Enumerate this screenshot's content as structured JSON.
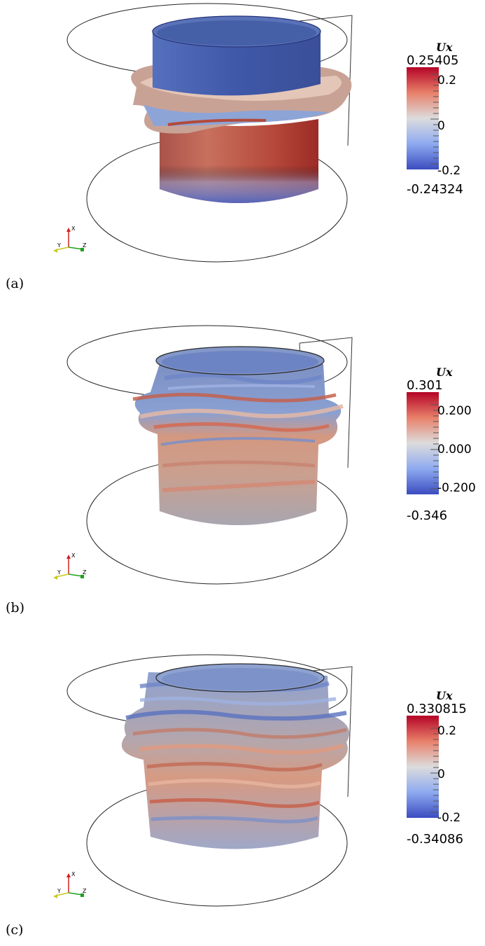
{
  "figure": {
    "panels": [
      {
        "label": "(a)",
        "colorbar": {
          "title": "Ux",
          "max": "0.25405",
          "min": "-0.24324",
          "ticks": [
            "0.2",
            "0",
            "-0.2"
          ]
        },
        "axes": {
          "x": "X",
          "y": "Y",
          "z": "Z"
        }
      },
      {
        "label": "(b)",
        "colorbar": {
          "title": "Ux",
          "max": "0.301",
          "min": "-0.346",
          "ticks": [
            "0.200",
            "0.000",
            "-0.200"
          ]
        },
        "axes": {
          "x": "X",
          "y": "Y",
          "z": "Z"
        }
      },
      {
        "label": "(c)",
        "colorbar": {
          "title": "Ux",
          "max": "0.330815",
          "min": "-0.34086",
          "ticks": [
            "0.2",
            "0",
            "-0.2"
          ]
        },
        "axes": {
          "x": "X",
          "y": "Y",
          "z": "Z"
        }
      }
    ],
    "colors": {
      "high": "#b40426",
      "mid": "#dddddd",
      "low": "#3b4cc0"
    }
  }
}
